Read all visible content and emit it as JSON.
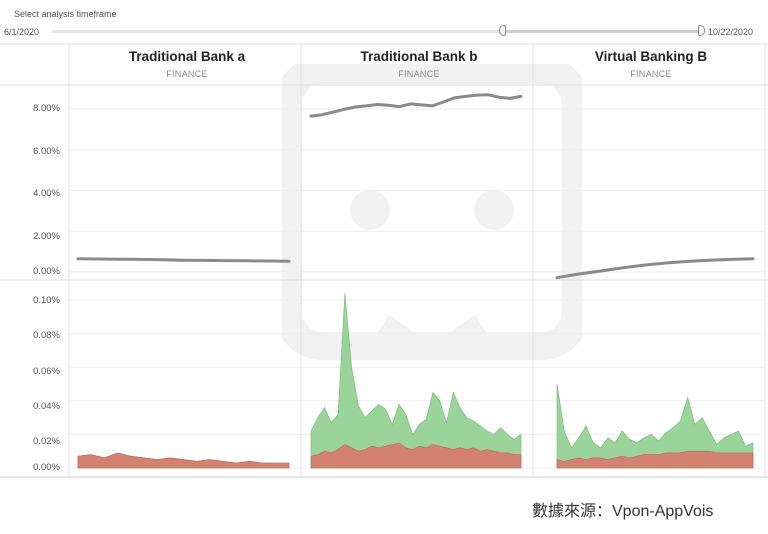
{
  "slider": {
    "title": "Select analysis timeframe",
    "start_label": "6/1/2020",
    "end_label": "10/22/2020"
  },
  "panels": [
    {
      "title": "Traditional Bank a",
      "subtitle": "FINANCE"
    },
    {
      "title": "Traditional Bank b",
      "subtitle": "FINANCE"
    },
    {
      "title": "Virtual Banking B",
      "subtitle": "FINANCE"
    }
  ],
  "source": "數據來源：Vpon-AppVois",
  "colors": {
    "line": "#8a8a8a",
    "green": "#8fcf8f",
    "red": "#d9786b",
    "grid": "#eeeeee"
  },
  "chart_data": [
    {
      "type": "line",
      "title": "",
      "ylim": [
        0,
        0.09
      ],
      "yticks": [
        "8.00%",
        "6.00%",
        "4.00%",
        "2.00%",
        "0.00%"
      ],
      "ytick_values": [
        0.08,
        0.06,
        0.04,
        0.02,
        0.0
      ],
      "series": [
        {
          "panel": "Traditional Bank a",
          "y": [
            0.0065,
            0.0064,
            0.0063,
            0.0062,
            0.006,
            0.0058,
            0.0057,
            0.0056,
            0.0055,
            0.0054,
            0.0053
          ]
        },
        {
          "panel": "Traditional Bank b",
          "y": [
            0.0765,
            0.0772,
            0.0785,
            0.0798,
            0.081,
            0.0815,
            0.0822,
            0.0818,
            0.0812,
            0.0825,
            0.082,
            0.0815,
            0.0835,
            0.0855,
            0.0862,
            0.0868,
            0.087,
            0.0858,
            0.0852,
            0.0862
          ]
        },
        {
          "panel": "Virtual Banking B",
          "y": [
            -0.0028,
            -0.001,
            0.0005,
            0.002,
            0.0034,
            0.0044,
            0.0052,
            0.0058,
            0.0062,
            0.0065
          ]
        }
      ]
    },
    {
      "type": "area",
      "title": "",
      "ylim": [
        0,
        0.11
      ],
      "yticks": [
        "0.10%",
        "0.08%",
        "0.06%",
        "0.04%",
        "0.02%",
        "0.00%"
      ],
      "ytick_values": [
        0.1,
        0.08,
        0.06,
        0.04,
        0.02,
        0.0
      ],
      "panels": [
        {
          "panel": "Traditional Bank a",
          "green": [
            0.007,
            0.008,
            0.006,
            0.009,
            0.007,
            0.006,
            0.005,
            0.006,
            0.005,
            0.004,
            0.005,
            0.004,
            0.003,
            0.004,
            0.003,
            0.003,
            0.003
          ],
          "red": [
            0.007,
            0.008,
            0.006,
            0.009,
            0.007,
            0.006,
            0.005,
            0.006,
            0.005,
            0.004,
            0.005,
            0.004,
            0.003,
            0.004,
            0.003,
            0.003,
            0.003
          ]
        },
        {
          "panel": "Traditional Bank b",
          "green": [
            0.022,
            0.03,
            0.036,
            0.027,
            0.032,
            0.104,
            0.06,
            0.037,
            0.03,
            0.034,
            0.038,
            0.035,
            0.026,
            0.038,
            0.032,
            0.02,
            0.026,
            0.029,
            0.045,
            0.04,
            0.027,
            0.045,
            0.036,
            0.03,
            0.028,
            0.025,
            0.022,
            0.02,
            0.024,
            0.02,
            0.017,
            0.02
          ],
          "red": [
            0.007,
            0.008,
            0.01,
            0.009,
            0.011,
            0.014,
            0.012,
            0.01,
            0.011,
            0.013,
            0.012,
            0.013,
            0.014,
            0.015,
            0.012,
            0.011,
            0.013,
            0.012,
            0.014,
            0.013,
            0.012,
            0.011,
            0.012,
            0.011,
            0.012,
            0.01,
            0.011,
            0.01,
            0.009,
            0.009,
            0.008,
            0.008
          ]
        },
        {
          "panel": "Virtual Banking B",
          "green": [
            0.05,
            0.022,
            0.012,
            0.018,
            0.025,
            0.015,
            0.012,
            0.018,
            0.015,
            0.022,
            0.017,
            0.015,
            0.018,
            0.02,
            0.016,
            0.021,
            0.024,
            0.028,
            0.042,
            0.026,
            0.03,
            0.022,
            0.014,
            0.018,
            0.02,
            0.022,
            0.013,
            0.015
          ],
          "red": [
            0.005,
            0.004,
            0.005,
            0.006,
            0.005,
            0.006,
            0.006,
            0.005,
            0.006,
            0.007,
            0.006,
            0.007,
            0.008,
            0.008,
            0.008,
            0.009,
            0.009,
            0.009,
            0.01,
            0.01,
            0.01,
            0.01,
            0.009,
            0.009,
            0.009,
            0.009,
            0.009,
            0.009
          ]
        }
      ]
    }
  ]
}
